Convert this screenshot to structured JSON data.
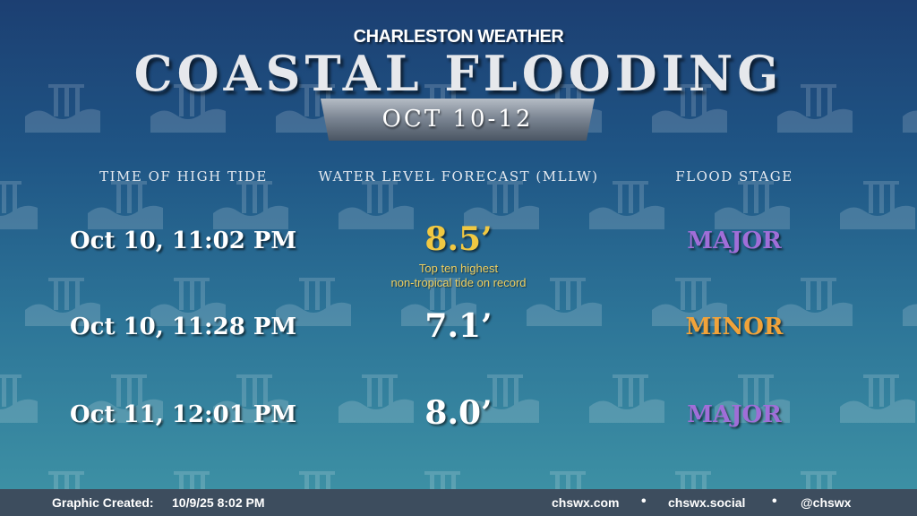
{
  "header": {
    "brand": "CHARLESTON WEATHER",
    "title": "COASTAL FLOODING",
    "date_range": "OCT 10-12"
  },
  "columns": {
    "time": "TIME OF HIGH TIDE",
    "level": "WATER LEVEL FORECAST (MLLW)",
    "stage": "FLOOD STAGE"
  },
  "tides": [
    {
      "time": "Oct 10, 11:02 PM",
      "level": "8.5’",
      "level_color": "#f0c842",
      "note_line1": "Top ten highest",
      "note_line2": "non-tropical tide on record",
      "stage": "MAJOR",
      "stage_color": "#a06ed8"
    },
    {
      "time": "Oct 10, 11:28 PM",
      "level": "7.1’",
      "level_color": "#ffffff",
      "stage": "MINOR",
      "stage_color": "#f1a33a"
    },
    {
      "time": "Oct 11, 12:01 PM",
      "level": "8.0’",
      "level_color": "#ffffff",
      "stage": "MAJOR",
      "stage_color": "#a06ed8"
    }
  ],
  "footer": {
    "created_label": "Graphic Created:",
    "created_value": "10/9/25 8:02 PM",
    "links": [
      "chswx.com",
      "chswx.social",
      "@chswx"
    ],
    "separator": "•"
  },
  "colors": {
    "background_top": "#1c3f72",
    "background_bottom": "#3f94a6",
    "footer_bar": "#3d4d5e",
    "note_text": "#f0d060"
  },
  "icons": {
    "background_pattern": "water-level-gauge-icon"
  }
}
